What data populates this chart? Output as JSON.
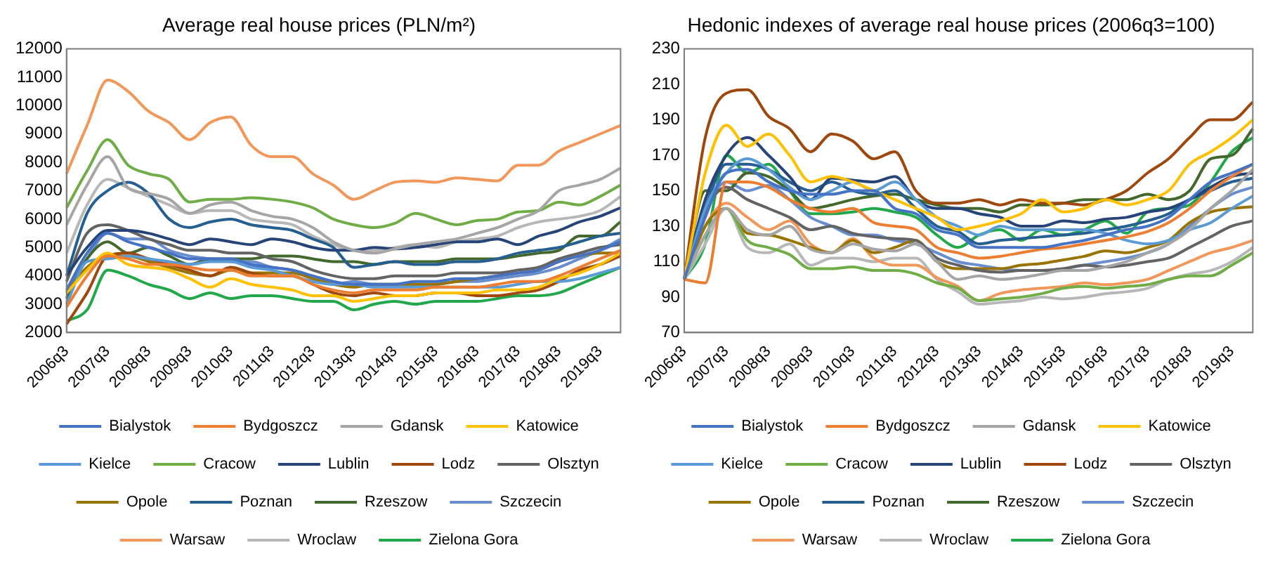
{
  "chart_data": [
    {
      "type": "line",
      "title": "Average real house prices (PLN/m²)",
      "categories": [
        "2006q3",
        null,
        "2007q3",
        null,
        "2008q3",
        null,
        "2009q3",
        null,
        "2010q3",
        null,
        "2011q3",
        null,
        "2012q3",
        null,
        "2013q3",
        null,
        "2014q3",
        null,
        "2015q3",
        null,
        "2016q3",
        null,
        "2017q3",
        null,
        "2018q3",
        null,
        "2019q3",
        null
      ],
      "ylim": [
        2000,
        12000
      ],
      "yticks": [
        2000,
        3000,
        4000,
        5000,
        6000,
        7000,
        8000,
        9000,
        10000,
        11000,
        12000
      ],
      "grid": false,
      "legend": "bottom",
      "marker": "none",
      "series": [
        {
          "name": "Bialystok",
          "color": "#4472c4",
          "values": [
            3500,
            4800,
            5500,
            5200,
            5000,
            4800,
            4600,
            4600,
            4600,
            4400,
            4300,
            4200,
            4000,
            3800,
            3700,
            3700,
            3700,
            3800,
            3800,
            3900,
            3900,
            4000,
            4100,
            4200,
            4500,
            4700,
            4900,
            5200
          ]
        },
        {
          "name": "Bydgoszcz",
          "color": "#ed7d31",
          "values": [
            2900,
            4000,
            4700,
            4600,
            4400,
            4400,
            4300,
            4200,
            4200,
            4000,
            4000,
            4000,
            3700,
            3500,
            3400,
            3500,
            3500,
            3500,
            3600,
            3600,
            3600,
            3700,
            3800,
            3800,
            4000,
            4300,
            4600,
            4900
          ]
        },
        {
          "name": "Gdansk",
          "color": "#a5a5a5",
          "values": [
            5800,
            7200,
            8200,
            7100,
            6900,
            6700,
            6200,
            6500,
            6600,
            6300,
            6100,
            6000,
            5700,
            5200,
            4900,
            4800,
            4950,
            5100,
            5200,
            5300,
            5500,
            5700,
            6000,
            6300,
            7000,
            7200,
            7400,
            7800
          ]
        },
        {
          "name": "Katowice",
          "color": "#ffc000",
          "values": [
            3400,
            4200,
            4800,
            4400,
            4300,
            4200,
            3900,
            3600,
            3900,
            3700,
            3600,
            3500,
            3300,
            3300,
            3100,
            3200,
            3300,
            3300,
            3400,
            3400,
            3400,
            3500,
            3500,
            3600,
            3900,
            4100,
            4400,
            4800
          ]
        },
        {
          "name": "Kielce",
          "color": "#5b9bd5",
          "values": [
            3000,
            4500,
            4600,
            4700,
            4600,
            4500,
            4400,
            4500,
            4500,
            4300,
            4200,
            4000,
            3800,
            3700,
            3700,
            3600,
            3600,
            3600,
            3600,
            3600,
            3600,
            3600,
            3700,
            3800,
            3800,
            3900,
            4100,
            4300
          ]
        },
        {
          "name": "Cracow",
          "color": "#70ad47",
          "values": [
            6400,
            7700,
            8800,
            7900,
            7600,
            7400,
            6600,
            6700,
            6700,
            6750,
            6700,
            6600,
            6400,
            6000,
            5800,
            5700,
            5850,
            6200,
            6000,
            5800,
            5950,
            6000,
            6250,
            6300,
            6600,
            6500,
            6800,
            7200
          ]
        },
        {
          "name": "Lublin",
          "color": "#264478",
          "values": [
            4000,
            5000,
            5600,
            5600,
            5500,
            5300,
            5100,
            5300,
            5200,
            5100,
            5300,
            5200,
            5000,
            4900,
            4900,
            5000,
            4950,
            5000,
            5100,
            5200,
            5200,
            5300,
            5100,
            5400,
            5600,
            5900,
            6100,
            6400
          ]
        },
        {
          "name": "Lodz",
          "color": "#9e480e",
          "values": [
            2300,
            3400,
            4700,
            4800,
            4600,
            4400,
            4200,
            4000,
            4300,
            4100,
            4000,
            4000,
            3700,
            3400,
            3300,
            3400,
            3300,
            3300,
            3400,
            3400,
            3300,
            3300,
            3400,
            3500,
            3800,
            4200,
            4400,
            4700
          ]
        },
        {
          "name": "Olsztyn",
          "color": "#636363",
          "values": [
            3800,
            5500,
            5800,
            5600,
            5300,
            5100,
            4900,
            4900,
            4800,
            4800,
            4600,
            4500,
            4200,
            4000,
            3900,
            3900,
            4000,
            4000,
            4000,
            4100,
            4100,
            4100,
            4200,
            4300,
            4600,
            4800,
            5000,
            5100
          ]
        },
        {
          "name": "Opole",
          "color": "#997300",
          "values": [
            3400,
            4300,
            4700,
            4700,
            4500,
            4300,
            4100,
            4000,
            4200,
            4100,
            4100,
            4100,
            3900,
            3700,
            3600,
            3700,
            3700,
            3700,
            3700,
            3800,
            3900,
            4000,
            4100,
            4200,
            4500,
            4700,
            4800,
            4800
          ]
        },
        {
          "name": "Poznan",
          "color": "#255e91",
          "values": [
            4000,
            6200,
            7000,
            7300,
            6900,
            6000,
            5700,
            5900,
            6000,
            5800,
            5700,
            5600,
            5300,
            5000,
            4300,
            4400,
            4500,
            4400,
            4400,
            4500,
            4500,
            4600,
            4800,
            4900,
            5000,
            5200,
            5400,
            5500
          ]
        },
        {
          "name": "Rzeszow",
          "color": "#43682b",
          "values": [
            3200,
            4600,
            5200,
            4800,
            5000,
            4700,
            4400,
            4600,
            4600,
            4600,
            4700,
            4700,
            4600,
            4500,
            4500,
            4400,
            4500,
            4500,
            4500,
            4600,
            4600,
            4600,
            4700,
            4800,
            4900,
            5400,
            5400,
            5900
          ]
        },
        {
          "name": "Szczecin",
          "color": "#698ed0",
          "values": [
            3400,
            4600,
            5500,
            5300,
            5300,
            4900,
            4700,
            4600,
            4500,
            4500,
            4300,
            4200,
            3900,
            3700,
            3800,
            3700,
            3700,
            3700,
            3700,
            3800,
            3800,
            3900,
            4000,
            4100,
            4300,
            4600,
            4900,
            5300
          ]
        },
        {
          "name": "Warsaw",
          "color": "#f1975a",
          "values": [
            7600,
            9300,
            10900,
            10500,
            9800,
            9400,
            8800,
            9400,
            9600,
            8600,
            8200,
            8200,
            7600,
            7200,
            6700,
            7000,
            7300,
            7350,
            7300,
            7450,
            7400,
            7350,
            7900,
            7900,
            8400,
            8700,
            9000,
            9300
          ]
        },
        {
          "name": "Wroclaw",
          "color": "#b7b7b7",
          "values": [
            4800,
            6500,
            7400,
            7100,
            6800,
            6500,
            6200,
            6300,
            6300,
            6000,
            5900,
            5800,
            5400,
            5100,
            4900,
            4900,
            5000,
            5100,
            5000,
            5200,
            5300,
            5400,
            5700,
            5900,
            6000,
            6100,
            6300,
            6800
          ]
        },
        {
          "name": "Zielona Gora",
          "color": "#21a84a",
          "values": [
            2400,
            2800,
            4200,
            4000,
            3700,
            3500,
            3200,
            3400,
            3200,
            3300,
            3300,
            3200,
            3100,
            3100,
            2800,
            3000,
            3100,
            3000,
            3100,
            3100,
            3100,
            3200,
            3300,
            3300,
            3400,
            3700,
            4000,
            4300
          ]
        }
      ]
    },
    {
      "type": "line",
      "title": "Hedonic indexes of average real house prices (2006q3=100)",
      "categories": [
        "2006q3",
        null,
        "2007q3",
        null,
        "2008q3",
        null,
        "2009q3",
        null,
        "2010q3",
        null,
        "2011q3",
        null,
        "2012q3",
        null,
        "2013q3",
        null,
        "2014q3",
        null,
        "2015q3",
        null,
        "2016q3",
        null,
        "2017q3",
        null,
        "2018q3",
        null,
        "2019q3",
        null
      ],
      "ylim": [
        70,
        230
      ],
      "yticks": [
        70,
        90,
        110,
        130,
        150,
        170,
        190,
        210,
        230
      ],
      "grid": false,
      "legend": "bottom",
      "marker": "none",
      "series": [
        {
          "name": "Bialystok",
          "color": "#4472c4",
          "values": [
            100,
            135,
            160,
            162,
            155,
            150,
            148,
            148,
            150,
            150,
            140,
            137,
            128,
            125,
            118,
            118,
            118,
            118,
            120,
            122,
            125,
            128,
            130,
            135,
            145,
            155,
            160,
            165
          ]
        },
        {
          "name": "Bydgoszcz",
          "color": "#ed7d31",
          "values": [
            100,
            98,
            155,
            155,
            152,
            145,
            140,
            138,
            140,
            132,
            130,
            128,
            118,
            115,
            112,
            113,
            115,
            117,
            118,
            120,
            122,
            124,
            127,
            132,
            140,
            150,
            158,
            165
          ]
        },
        {
          "name": "Gdansk",
          "color": "#a5a5a5",
          "values": [
            100,
            125,
            140,
            128,
            125,
            130,
            117,
            115,
            120,
            117,
            116,
            120,
            110,
            100,
            102,
            100,
            101,
            103,
            105,
            105,
            107,
            110,
            115,
            120,
            128,
            140,
            150,
            162
          ]
        },
        {
          "name": "Katowice",
          "color": "#ffc000",
          "values": [
            100,
            160,
            187,
            175,
            182,
            170,
            155,
            158,
            155,
            150,
            145,
            140,
            135,
            128,
            130,
            133,
            137,
            145,
            138,
            140,
            145,
            142,
            145,
            150,
            165,
            172,
            180,
            190
          ]
        },
        {
          "name": "Kielce",
          "color": "#5b9bd5",
          "values": [
            100,
            140,
            160,
            168,
            162,
            152,
            145,
            150,
            155,
            150,
            155,
            145,
            135,
            130,
            125,
            130,
            128,
            128,
            128,
            128,
            126,
            122,
            120,
            122,
            128,
            132,
            140,
            147
          ]
        },
        {
          "name": "Cracow",
          "color": "#70ad47",
          "values": [
            100,
            125,
            140,
            122,
            118,
            114,
            106,
            106,
            107,
            105,
            105,
            103,
            98,
            95,
            88,
            89,
            90,
            92,
            95,
            96,
            95,
            96,
            97,
            100,
            102,
            102,
            108,
            115
          ]
        },
        {
          "name": "Lublin",
          "color": "#264478",
          "values": [
            100,
            145,
            170,
            180,
            170,
            158,
            145,
            157,
            156,
            155,
            158,
            145,
            140,
            140,
            137,
            135,
            130,
            130,
            133,
            132,
            134,
            135,
            138,
            140,
            145,
            152,
            158,
            160
          ]
        },
        {
          "name": "Lodz",
          "color": "#9e480e",
          "values": [
            100,
            180,
            205,
            207,
            192,
            185,
            172,
            182,
            178,
            168,
            172,
            150,
            143,
            143,
            145,
            142,
            145,
            143,
            143,
            142,
            145,
            150,
            160,
            168,
            180,
            190,
            190,
            200
          ]
        },
        {
          "name": "Olsztyn",
          "color": "#636363",
          "values": [
            100,
            138,
            152,
            145,
            140,
            135,
            128,
            130,
            126,
            124,
            123,
            122,
            112,
            108,
            105,
            104,
            105,
            105,
            106,
            108,
            107,
            108,
            110,
            112,
            118,
            124,
            130,
            133
          ]
        },
        {
          "name": "Opole",
          "color": "#997300",
          "values": [
            100,
            130,
            140,
            126,
            125,
            122,
            118,
            115,
            122,
            115,
            118,
            122,
            110,
            106,
            106,
            106,
            108,
            109,
            111,
            113,
            116,
            115,
            118,
            122,
            132,
            138,
            140,
            141
          ]
        },
        {
          "name": "Poznan",
          "color": "#255e91",
          "values": [
            100,
            140,
            165,
            165,
            162,
            155,
            150,
            155,
            150,
            148,
            150,
            140,
            130,
            127,
            120,
            122,
            123,
            124,
            125,
            126,
            128,
            130,
            133,
            137,
            145,
            150,
            155,
            157
          ]
        },
        {
          "name": "Rzeszow",
          "color": "#43682b",
          "values": [
            100,
            150,
            150,
            160,
            158,
            150,
            140,
            142,
            145,
            147,
            148,
            145,
            142,
            140,
            140,
            138,
            142,
            142,
            143,
            145,
            145,
            145,
            148,
            145,
            150,
            168,
            170,
            185
          ]
        },
        {
          "name": "Szczecin",
          "color": "#698ed0",
          "values": [
            100,
            138,
            155,
            150,
            153,
            145,
            135,
            130,
            125,
            125,
            122,
            120,
            115,
            110,
            108,
            106,
            105,
            105,
            106,
            108,
            110,
            112,
            115,
            120,
            130,
            140,
            148,
            152
          ]
        },
        {
          "name": "Warsaw",
          "color": "#f1975a",
          "values": [
            100,
            130,
            143,
            135,
            128,
            133,
            120,
            115,
            123,
            112,
            108,
            108,
            101,
            96,
            88,
            92,
            94,
            95,
            96,
            98,
            97,
            98,
            100,
            105,
            110,
            115,
            118,
            122
          ]
        },
        {
          "name": "Wroclaw",
          "color": "#b7b7b7",
          "values": [
            100,
            120,
            140,
            118,
            115,
            120,
            108,
            112,
            112,
            110,
            112,
            112,
            100,
            93,
            86,
            87,
            88,
            90,
            89,
            90,
            92,
            93,
            95,
            100,
            103,
            105,
            110,
            118
          ]
        },
        {
          "name": "Zielona Gora",
          "color": "#21a84a",
          "values": [
            100,
            120,
            170,
            160,
            165,
            150,
            137,
            137,
            138,
            140,
            138,
            135,
            125,
            118,
            125,
            128,
            122,
            128,
            125,
            128,
            133,
            126,
            138,
            140,
            142,
            155,
            172,
            180
          ]
        }
      ]
    }
  ]
}
